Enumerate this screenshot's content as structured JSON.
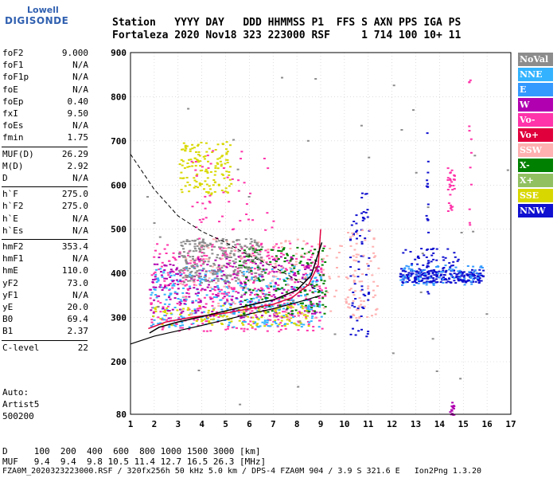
{
  "logo": {
    "line1": "Lowell",
    "line2": "DIGISONDE"
  },
  "header": {
    "line1": "Station   YYYY DAY   DDD HHMMSS P1  FFS S AXN PPS IGA PS",
    "line2": "Fortaleza 2020 Nov18 323 223000 RSF     1 714 100 10+ 11"
  },
  "params": [
    {
      "group": 0,
      "key": "foF2",
      "value": "9.000"
    },
    {
      "group": 0,
      "key": "foF1",
      "value": "N/A"
    },
    {
      "group": 0,
      "key": "foF1p",
      "value": "N/A"
    },
    {
      "group": 0,
      "key": "foE",
      "value": "N/A"
    },
    {
      "group": 0,
      "key": "foEp",
      "value": "0.40"
    },
    {
      "group": 0,
      "key": "fxI",
      "value": "9.50"
    },
    {
      "group": 0,
      "key": "foEs",
      "value": "N/A"
    },
    {
      "group": 0,
      "key": "fmin",
      "value": "1.75"
    },
    {
      "group": 1,
      "key": "MUF(D)",
      "value": "26.29"
    },
    {
      "group": 1,
      "key": "M(D)",
      "value": "2.92"
    },
    {
      "group": 1,
      "key": "D",
      "value": "N/A"
    },
    {
      "group": 2,
      "key": "h`F",
      "value": "275.0"
    },
    {
      "group": 2,
      "key": "h`F2",
      "value": "275.0"
    },
    {
      "group": 2,
      "key": "h`E",
      "value": "N/A"
    },
    {
      "group": 2,
      "key": "h`Es",
      "value": "N/A"
    },
    {
      "group": 3,
      "key": "hmF2",
      "value": "353.4"
    },
    {
      "group": 3,
      "key": "hmF1",
      "value": "N/A"
    },
    {
      "group": 3,
      "key": "hmE",
      "value": "110.0"
    },
    {
      "group": 3,
      "key": "yF2",
      "value": "73.0"
    },
    {
      "group": 3,
      "key": "yF1",
      "value": "N/A"
    },
    {
      "group": 3,
      "key": "yE",
      "value": "20.0"
    },
    {
      "group": 3,
      "key": "B0",
      "value": "69.4"
    },
    {
      "group": 3,
      "key": "B1",
      "value": "2.37"
    },
    {
      "group": 4,
      "key": "C-level",
      "value": "22"
    }
  ],
  "auto": {
    "line1": "Auto:",
    "line2": "Artist5",
    "line3": "500200"
  },
  "legend": [
    {
      "label": "NoVal",
      "color": "#8c8c8c"
    },
    {
      "label": "NNE",
      "color": "#33b3ff"
    },
    {
      "label": "E",
      "color": "#3399ff"
    },
    {
      "label": "W",
      "color": "#b000b0"
    },
    {
      "label": "Vo-",
      "color": "#ff33aa"
    },
    {
      "label": "Vo+",
      "color": "#e0003c"
    },
    {
      "label": "SSW",
      "color": "#ffb0b0"
    },
    {
      "label": "X-",
      "color": "#008000"
    },
    {
      "label": "X+",
      "color": "#90c060"
    },
    {
      "label": "SSE",
      "color": "#d8d800"
    },
    {
      "label": "NNW",
      "color": "#1010d0"
    }
  ],
  "footer": {
    "d_line": "D     100  200  400  600  800 1000 1500 3000 [km]",
    "muf_line": "MUF   9.4  9.4  9.8 10.5 11.4 12.7 16.5 26.3 [MHz]",
    "file_line": "FZA0M_2020323223000.RSF / 320fx256h 50 kHz 5.0 km / DPS-4 FZA0M 904 / 3.9 S 321.6 E   Ion2Png 1.3.20"
  },
  "chart_data": {
    "type": "scatter",
    "xlim": [
      1,
      17
    ],
    "ylim": [
      80,
      900
    ],
    "x_ticks": [
      1,
      2,
      3,
      4,
      5,
      6,
      7,
      8,
      9,
      10,
      11,
      12,
      13,
      14,
      15,
      16,
      17
    ],
    "y_ticks": [
      80,
      200,
      300,
      400,
      500,
      600,
      700,
      800,
      900
    ],
    "grid": true,
    "legend_position": "right",
    "trace_dashed": [
      [
        1.0,
        670
      ],
      [
        2.0,
        590
      ],
      [
        3.0,
        530
      ],
      [
        4.0,
        495
      ],
      [
        5.0,
        470
      ],
      [
        6.0,
        440
      ],
      [
        7.0,
        415
      ],
      [
        8.0,
        385
      ],
      [
        9.0,
        360
      ]
    ],
    "trace_lower": [
      [
        1.0,
        240
      ],
      [
        2.0,
        258
      ],
      [
        3.0,
        270
      ],
      [
        4.0,
        282
      ],
      [
        5.0,
        295
      ],
      [
        6.0,
        308
      ],
      [
        7.0,
        320
      ],
      [
        8.0,
        334
      ],
      [
        9.0,
        350
      ]
    ],
    "trace_profile": [
      [
        1.75,
        275
      ],
      [
        2.5,
        290
      ],
      [
        3.5,
        300
      ],
      [
        5.0,
        310
      ],
      [
        6.0,
        320
      ],
      [
        7.0,
        330
      ],
      [
        7.8,
        345
      ],
      [
        8.5,
        375
      ],
      [
        8.9,
        420
      ],
      [
        9.0,
        500
      ]
    ],
    "trace_black": [
      [
        1.8,
        265
      ],
      [
        2.2,
        278
      ],
      [
        3.0,
        290
      ],
      [
        4.0,
        302
      ],
      [
        5.0,
        315
      ],
      [
        6.0,
        328
      ],
      [
        7.0,
        340
      ],
      [
        8.0,
        362
      ],
      [
        8.6,
        395
      ],
      [
        9.05,
        470
      ]
    ],
    "clusters": [
      {
        "color_index": 4,
        "x": [
          1.75,
          9.2
        ],
        "y": [
          270,
          470
        ],
        "count": 420
      },
      {
        "color_index": 1,
        "x": [
          1.8,
          9.0
        ],
        "y": [
          280,
          420
        ],
        "count": 360
      },
      {
        "color_index": 3,
        "x": [
          1.8,
          9.0
        ],
        "y": [
          300,
          440
        ],
        "count": 280
      },
      {
        "color_index": 7,
        "x": [
          5.5,
          9.2
        ],
        "y": [
          310,
          460
        ],
        "count": 160
      },
      {
        "color_index": 9,
        "x": [
          1.8,
          8.5
        ],
        "y": [
          280,
          330
        ],
        "count": 120
      },
      {
        "color_index": 6,
        "x": [
          3.0,
          10.8
        ],
        "y": [
          300,
          480
        ],
        "count": 160
      },
      {
        "color_index": 0,
        "x": [
          3.0,
          6.5
        ],
        "y": [
          380,
          480
        ],
        "count": 260
      },
      {
        "color_index": 9,
        "x": [
          3.0,
          5.2
        ],
        "y": [
          580,
          700
        ],
        "count": 140
      },
      {
        "color_index": 4,
        "x": [
          3.5,
          7.0
        ],
        "y": [
          480,
          680
        ],
        "count": 50
      },
      {
        "color_index": 10,
        "x": [
          10.2,
          11.0
        ],
        "y": [
          250,
          600
        ],
        "count": 70
      },
      {
        "color_index": 6,
        "x": [
          10.0,
          11.4
        ],
        "y": [
          300,
          500
        ],
        "count": 60
      },
      {
        "color_index": 10,
        "x": [
          12.3,
          15.8
        ],
        "y": [
          380,
          410
        ],
        "count": 240
      },
      {
        "color_index": 2,
        "x": [
          12.3,
          15.8
        ],
        "y": [
          375,
          420
        ],
        "count": 80
      },
      {
        "color_index": 10,
        "x": [
          12.3,
          14.8
        ],
        "y": [
          410,
          460
        ],
        "count": 40
      },
      {
        "color_index": 4,
        "x": [
          14.3,
          14.6
        ],
        "y": [
          540,
          640
        ],
        "count": 30
      },
      {
        "color_index": 3,
        "x": [
          14.4,
          14.6
        ],
        "y": [
          80,
          110
        ],
        "count": 14
      },
      {
        "color_index": 10,
        "x": [
          13.4,
          13.5
        ],
        "y": [
          310,
          720
        ],
        "count": 26
      },
      {
        "color_index": 4,
        "x": [
          15.2,
          15.3
        ],
        "y": [
          500,
          840
        ],
        "count": 12
      },
      {
        "color_index": 0,
        "x": [
          1.5,
          17.0
        ],
        "y": [
          100,
          900
        ],
        "count": 40
      }
    ]
  }
}
